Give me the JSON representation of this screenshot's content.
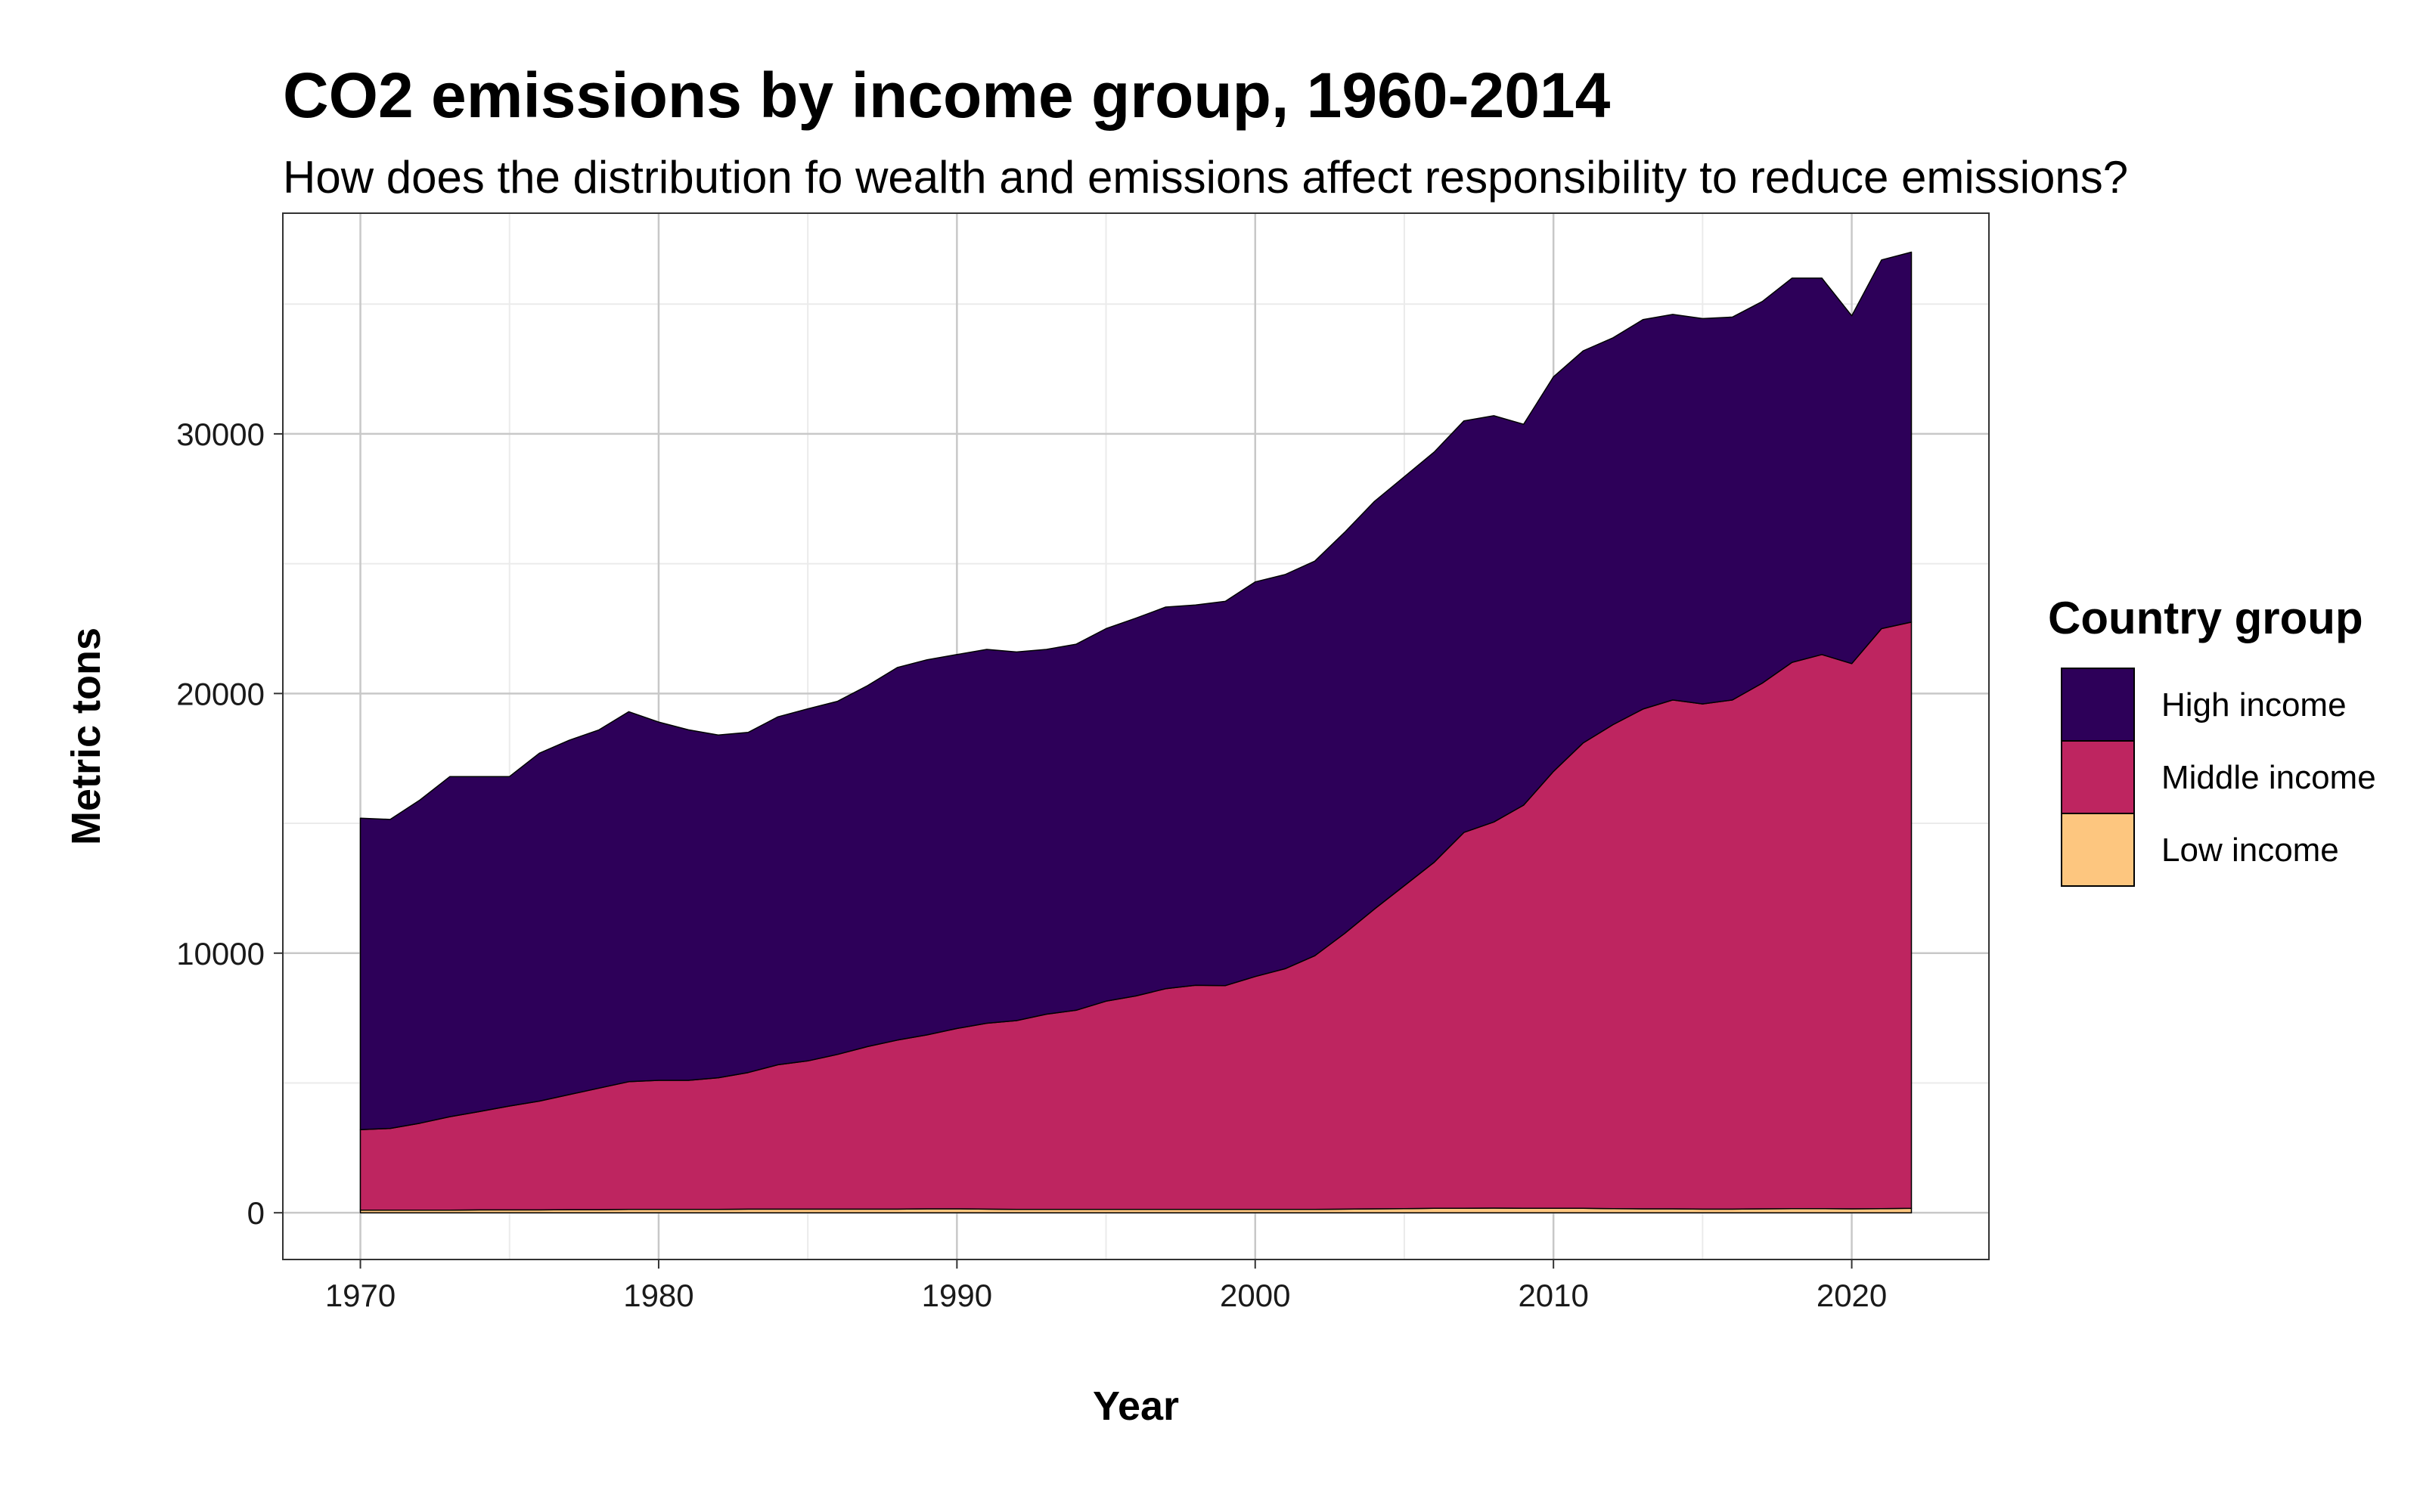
{
  "chart_data": {
    "type": "area",
    "stacked": true,
    "title": "CO2 emissions by income group, 1960-2014",
    "subtitle": "How does the distribution fo wealth and emissions affect responsibility to reduce emissions?",
    "xlabel": "Year",
    "ylabel": "Metric tons",
    "xlim": [
      1967.4,
      2024.6
    ],
    "ylim": [
      -1800,
      38500
    ],
    "x_ticks": [
      1970,
      1980,
      1990,
      2000,
      2010,
      2020
    ],
    "y_ticks": [
      0,
      10000,
      20000,
      30000
    ],
    "grid": true,
    "legend_title": "Country group",
    "legend_position": "right",
    "x": [
      1970,
      1971,
      1972,
      1973,
      1974,
      1975,
      1976,
      1977,
      1978,
      1979,
      1980,
      1981,
      1982,
      1983,
      1984,
      1985,
      1986,
      1987,
      1988,
      1989,
      1990,
      1991,
      1992,
      1993,
      1994,
      1995,
      1996,
      1997,
      1998,
      1999,
      2000,
      2001,
      2002,
      2003,
      2004,
      2005,
      2006,
      2007,
      2008,
      2009,
      2010,
      2011,
      2012,
      2013,
      2014,
      2015,
      2016,
      2017,
      2018,
      2019,
      2020,
      2021,
      2022
    ],
    "series": [
      {
        "name": "Low income",
        "color": "#FDC67F",
        "values": [
          100,
          100,
          100,
          100,
          110,
          110,
          110,
          120,
          120,
          130,
          130,
          130,
          130,
          140,
          140,
          140,
          140,
          140,
          140,
          150,
          150,
          140,
          130,
          130,
          130,
          130,
          130,
          130,
          130,
          130,
          130,
          130,
          130,
          140,
          150,
          160,
          170,
          170,
          180,
          170,
          170,
          170,
          160,
          150,
          150,
          140,
          140,
          150,
          160,
          160,
          150,
          160,
          170
        ]
      },
      {
        "name": "Middle income",
        "color": "#BE2560",
        "values": [
          3100,
          3150,
          3350,
          3600,
          3790,
          4000,
          4190,
          4430,
          4680,
          4920,
          4970,
          4970,
          5070,
          5260,
          5560,
          5710,
          5960,
          6260,
          6510,
          6700,
          6950,
          7160,
          7270,
          7520,
          7670,
          8020,
          8220,
          8500,
          8630,
          8620,
          8970,
          9270,
          9770,
          10620,
          11550,
          12440,
          13330,
          14480,
          14870,
          15530,
          16830,
          17930,
          18640,
          19250,
          19600,
          19460,
          19610,
          20250,
          21040,
          21340,
          21000,
          22340,
          22580
        ]
      },
      {
        "name": "High income",
        "color": "#2D0059",
        "values": [
          12000,
          11900,
          12450,
          13100,
          12900,
          12690,
          13400,
          13650,
          13800,
          14250,
          13800,
          13500,
          13200,
          13100,
          13400,
          13560,
          13600,
          13900,
          14350,
          14450,
          14400,
          14400,
          14200,
          14050,
          14100,
          14350,
          14550,
          14700,
          14650,
          14800,
          15200,
          15180,
          15200,
          15450,
          15700,
          15750,
          15800,
          15850,
          15650,
          14670,
          15200,
          15100,
          14900,
          15000,
          14850,
          14840,
          14750,
          14700,
          14800,
          14500,
          13400,
          14200,
          14250
        ]
      }
    ]
  }
}
